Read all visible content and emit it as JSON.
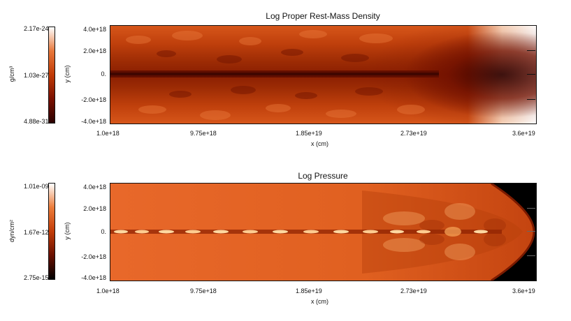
{
  "panels": [
    {
      "title": "Log Proper Rest-Mass Density",
      "colorbar": {
        "unit": "g/cm³",
        "max": "2.17e-24",
        "mid": "1.03e-27",
        "min": "4.88e-31"
      },
      "y_ticks": [
        "4.0e+18",
        "2.0e+18",
        "0.",
        "-2.0e+18",
        "-4.0e+18"
      ],
      "x_ticks": [
        "1.0e+18",
        "9.75e+18",
        "1.85e+19",
        "2.73e+19",
        "3.6e+19"
      ],
      "xlabel": "x (cm)",
      "ylabel": "y (cm)",
      "colors": [
        "#3a0000",
        "#a22800",
        "#d8551c",
        "#ef8a3c",
        "#ffffff"
      ]
    },
    {
      "title": "Log Pressure",
      "colorbar": {
        "unit": "dyn/cm²",
        "max": "1.01e-09",
        "mid": "1.67e-12",
        "min": "2.75e-15"
      },
      "y_ticks": [
        "4.0e+18",
        "2.0e+18",
        "0.",
        "-2.0e+18",
        "-4.0e+18"
      ],
      "x_ticks": [
        "1.0e+18",
        "9.75e+18",
        "1.85e+19",
        "2.73e+19",
        "3.6e+19"
      ],
      "xlabel": "x (cm)",
      "ylabel": "y (cm)",
      "colors": [
        "#000000",
        "#7a1a00",
        "#d4561a",
        "#f08a3c",
        "#ffffff"
      ]
    }
  ]
}
